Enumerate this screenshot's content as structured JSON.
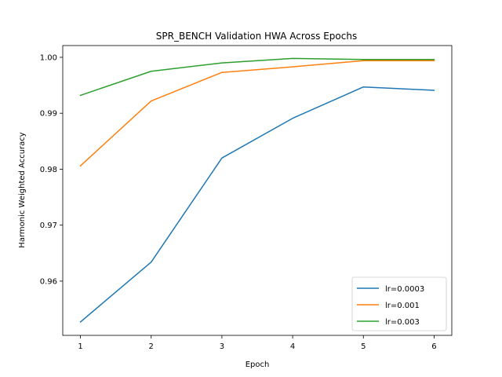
{
  "chart_data": {
    "type": "line",
    "title": "SPR_BENCH Validation HWA Across Epochs",
    "xlabel": "Epoch",
    "ylabel": "Harmonic Weighted Accuracy",
    "x": [
      1,
      2,
      3,
      4,
      5,
      6
    ],
    "xlim": [
      0.75,
      6.25
    ],
    "ylim": [
      0.9503,
      1.0021
    ],
    "xticks": [
      1,
      2,
      3,
      4,
      5,
      6
    ],
    "yticks": [
      0.96,
      0.97,
      0.98,
      0.99,
      1.0
    ],
    "ytick_labels": [
      "0.96",
      "0.97",
      "0.98",
      "0.99",
      "1.00"
    ],
    "grid": false,
    "legend_position": "lower-right",
    "series": [
      {
        "name": "lr=0.0003",
        "color": "#1f77b4",
        "values": [
          0.9527,
          0.9634,
          0.982,
          0.9891,
          0.9947,
          0.9941
        ]
      },
      {
        "name": "lr=0.001",
        "color": "#ff7f0e",
        "values": [
          0.9806,
          0.9922,
          0.9973,
          0.9983,
          0.9994,
          0.9994
        ]
      },
      {
        "name": "lr=0.003",
        "color": "#2ca02c",
        "values": [
          0.9932,
          0.9975,
          0.999,
          0.9998,
          0.9996,
          0.9996
        ]
      }
    ]
  }
}
